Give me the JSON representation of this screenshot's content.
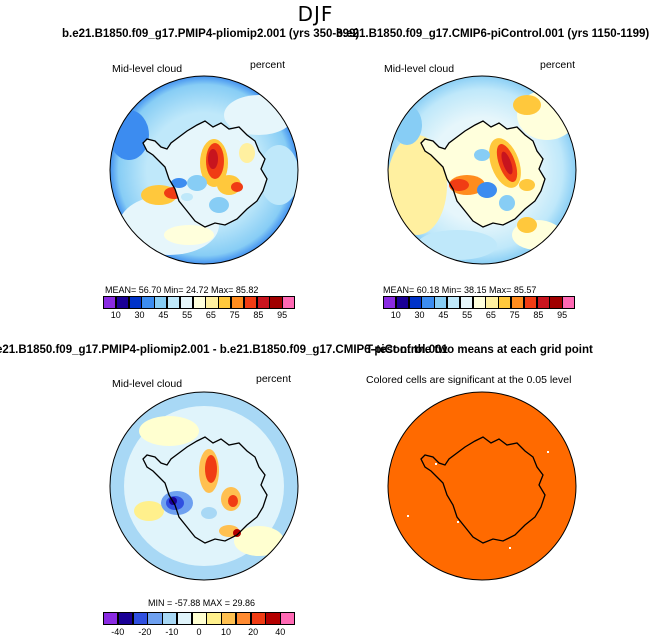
{
  "figure": {
    "season": "DJF",
    "title_left": "b.e21.B1850.f09_g17.PMIP4-pliomip2.001 (yrs 350-399)",
    "title_right": "b.e21.B1850.f09_g17.CMIP6-piControl.001 (yrs 1150-1199)",
    "title_diff": "e21.B1850.f09_g17.PMIP4-pliomip2.001 - b.e21.B1850.f09_g17.CMIP6-piControl.001",
    "title_ttest": "T-test of the two means at each grid point"
  },
  "panels": [
    {
      "id": "pliomip",
      "variable": "Mid-level cloud",
      "units": "percent",
      "stats_text": "MEAN=  56.70  Min=  24.72  Max=  85.82",
      "colorbar_labels": [
        "10",
        "30",
        "45",
        "55",
        "65",
        "75",
        "85",
        "95"
      ]
    },
    {
      "id": "picontrol",
      "variable": "Mid-level cloud",
      "units": "percent",
      "stats_text": "MEAN=  60.18  Min=  38.15  Max=  85.57",
      "colorbar_labels": [
        "10",
        "30",
        "45",
        "55",
        "65",
        "75",
        "85",
        "95"
      ]
    },
    {
      "id": "difference",
      "variable": "Mid-level cloud",
      "units": "percent",
      "stats_text": "MIN = -57.88  MAX =  29.86",
      "colorbar_labels": [
        "-40",
        "-20",
        "-10",
        "0",
        "10",
        "20",
        "40"
      ]
    },
    {
      "id": "ttest",
      "note": "Colored cells are significant at the 0.05 level"
    }
  ],
  "colors": {
    "abs_palette": [
      "#8a2be2",
      "#1a0096",
      "#0032c8",
      "#3c8cf0",
      "#87cdf5",
      "#bfe8fa",
      "#e6f6fb",
      "#ffffdc",
      "#fff0a0",
      "#ffc83c",
      "#ff8c1e",
      "#f03c14",
      "#c8141e",
      "#a00000",
      "#ff69b4"
    ],
    "diff_palette": [
      "#8a2be2",
      "#1a0096",
      "#3050e0",
      "#6ea0f0",
      "#a8d8f5",
      "#e0f4fb",
      "#ffffd0",
      "#fff08c",
      "#ffc050",
      "#ff8a30",
      "#f03c14",
      "#b40000",
      "#ff69b4"
    ],
    "significance": "#ff6a00"
  }
}
